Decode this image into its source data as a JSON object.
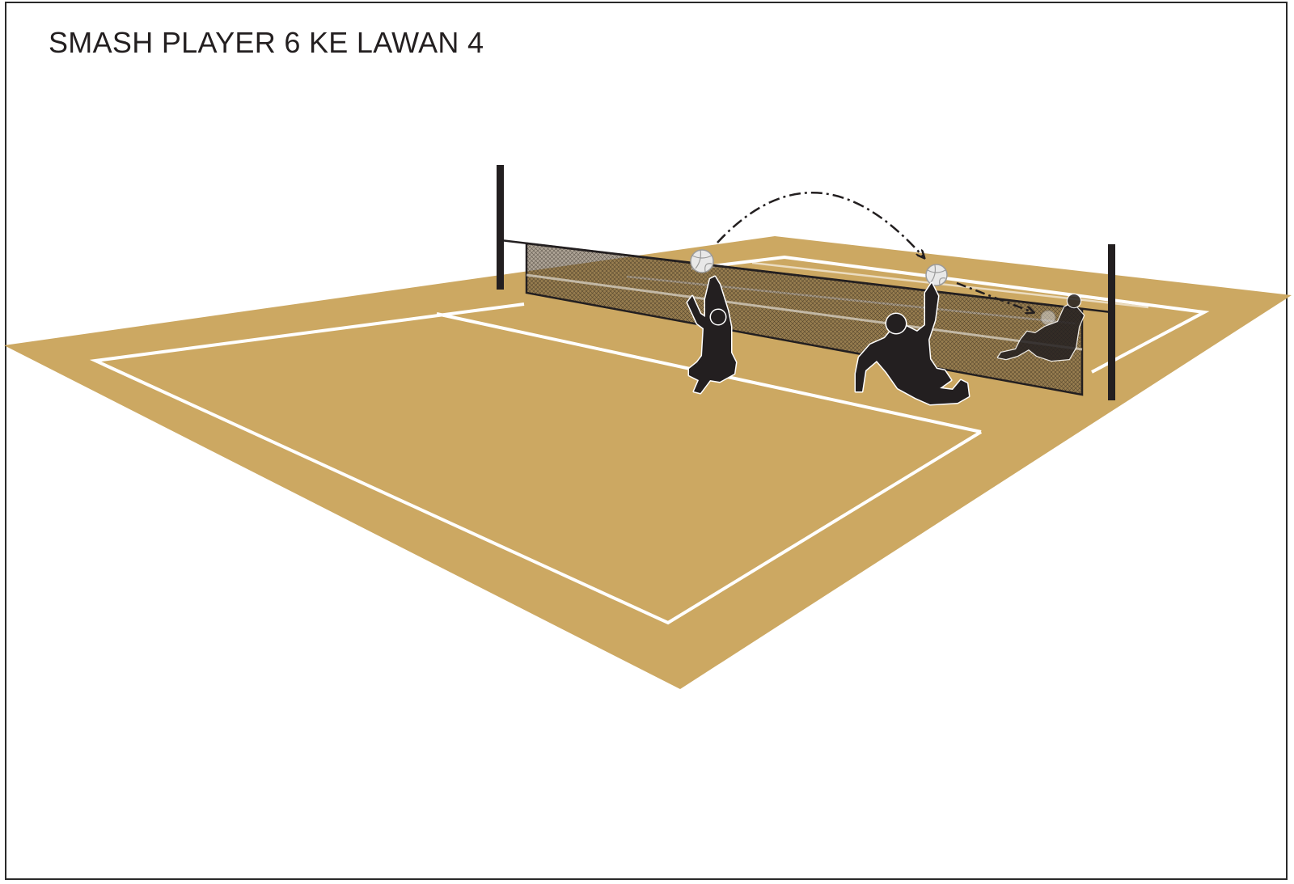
{
  "title": "SMASH PLAYER 6 KE LAWAN 4",
  "colors": {
    "court": "#cca862",
    "line": "#ffffff",
    "player": "#231f20",
    "net": "#3a3024",
    "post": "#231f20",
    "ball": "#e8e8e8"
  },
  "icons": {
    "player": "seated-player-silhouette",
    "ball": "volleyball-icon",
    "arrow": "trajectory-arrow"
  }
}
